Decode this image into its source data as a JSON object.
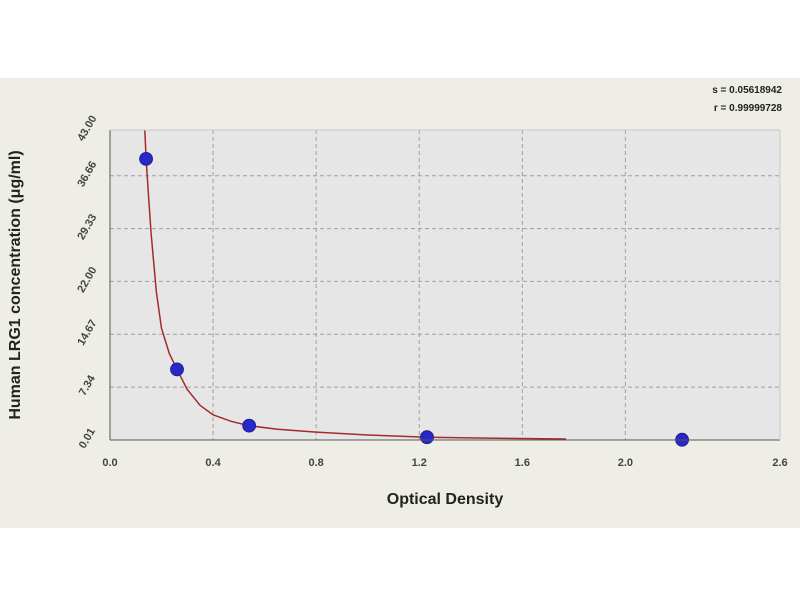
{
  "chart_data": {
    "type": "scatter",
    "xlabel": "Optical Density",
    "ylabel": "Human LRG1 concentration (μg/ml)",
    "xlim": [
      0,
      2.6
    ],
    "ylim": [
      0.01,
      43.0
    ],
    "x_ticks": [
      "0.0",
      "0.4",
      "0.8",
      "1.2",
      "1.6",
      "2.0",
      "2.6"
    ],
    "x_tick_values": [
      0,
      0.4,
      0.8,
      1.2,
      1.6,
      2.0,
      2.6
    ],
    "y_ticks": [
      "0.01",
      "7.34",
      "14.67",
      "22.00",
      "29.33",
      "36.66",
      "43.00"
    ],
    "y_tick_values": [
      0.01,
      7.34,
      14.67,
      22.0,
      29.33,
      36.66,
      43.0
    ],
    "grid": true,
    "points": {
      "x": [
        0.14,
        0.26,
        0.54,
        1.23,
        2.22
      ],
      "y": [
        39.0,
        9.8,
        2.0,
        0.4,
        0.05
      ]
    },
    "fit_curve": {
      "x": [
        0.135,
        0.14,
        0.15,
        0.16,
        0.18,
        0.2,
        0.23,
        0.26,
        0.3,
        0.35,
        0.4,
        0.47,
        0.54,
        0.65,
        0.8,
        1.0,
        1.23,
        1.5,
        1.77
      ],
      "y": [
        43.0,
        39.0,
        33.5,
        28.5,
        20.5,
        15.5,
        12.0,
        9.8,
        7.0,
        4.8,
        3.5,
        2.6,
        2.0,
        1.5,
        1.1,
        0.7,
        0.4,
        0.25,
        0.15
      ]
    },
    "stats": {
      "s": "s = 0.05618942",
      "r": "r = 0.99999728"
    },
    "colors": {
      "plot_bg": "#e6e6e6",
      "band": "#eeeee6",
      "point": "#2828c8",
      "curve": "#a52a2a",
      "grid": "#a0a0a0"
    }
  }
}
